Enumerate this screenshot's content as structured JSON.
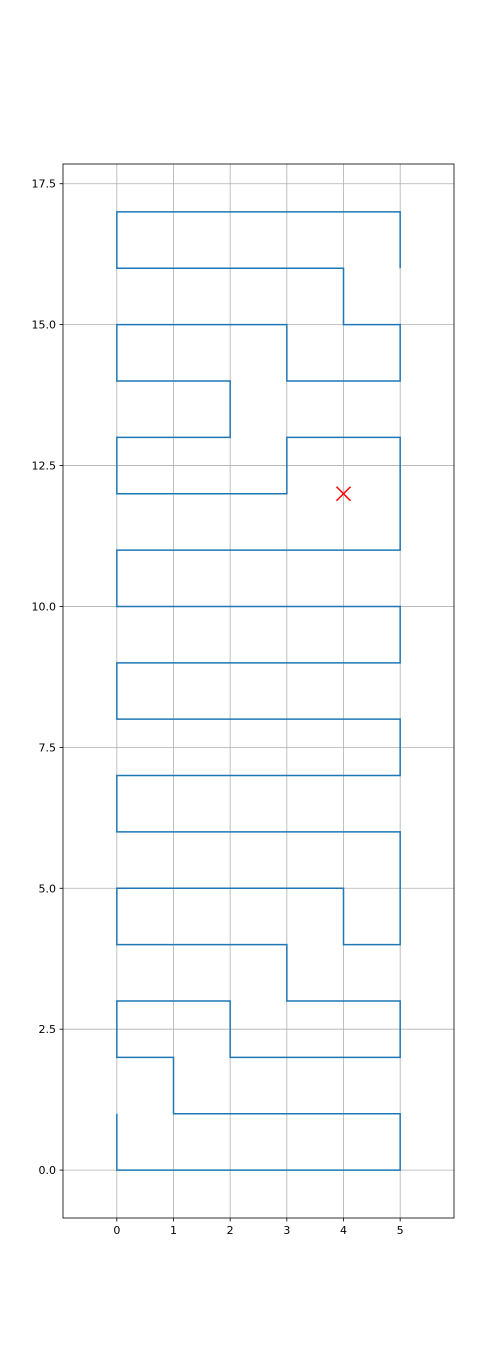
{
  "chart_data": {
    "type": "line",
    "title": "",
    "xlabel": "",
    "ylabel": "",
    "xlim": [
      -0.95,
      5.95
    ],
    "ylim": [
      -0.85,
      17.85
    ],
    "grid": true,
    "xticks": [
      0,
      1,
      2,
      3,
      4,
      5
    ],
    "xtick_labels": [
      "0",
      "1",
      "2",
      "3",
      "4",
      "5"
    ],
    "yticks": [
      0,
      2.5,
      5,
      7.5,
      10,
      12.5,
      15,
      17.5
    ],
    "ytick_labels": [
      "0.0",
      "2.5",
      "5.0",
      "7.5",
      "10.0",
      "12.5",
      "15.0",
      "17.5"
    ],
    "series": [
      {
        "color": "#1f77b4",
        "points": [
          [
            0,
            1
          ],
          [
            0,
            0
          ],
          [
            5,
            0
          ],
          [
            5,
            1
          ],
          [
            1,
            1
          ],
          [
            1,
            2
          ],
          [
            0,
            2
          ],
          [
            0,
            3
          ],
          [
            2,
            3
          ],
          [
            2,
            2
          ],
          [
            5,
            2
          ],
          [
            5,
            3
          ],
          [
            3,
            3
          ],
          [
            3,
            4
          ],
          [
            0,
            4
          ],
          [
            0,
            5
          ],
          [
            4,
            5
          ],
          [
            4,
            4
          ],
          [
            5,
            4
          ],
          [
            5,
            6
          ],
          [
            0,
            6
          ],
          [
            0,
            7
          ],
          [
            5,
            7
          ],
          [
            5,
            8
          ],
          [
            0,
            8
          ],
          [
            0,
            9
          ],
          [
            5,
            9
          ],
          [
            5,
            10
          ],
          [
            0,
            10
          ],
          [
            0,
            11
          ],
          [
            5,
            11
          ],
          [
            5,
            13
          ],
          [
            3,
            13
          ],
          [
            3,
            12
          ],
          [
            0,
            12
          ],
          [
            0,
            13
          ],
          [
            2,
            13
          ],
          [
            2,
            14
          ],
          [
            0,
            14
          ],
          [
            0,
            15
          ],
          [
            3,
            15
          ],
          [
            3,
            14
          ],
          [
            5,
            14
          ],
          [
            5,
            15
          ],
          [
            4,
            15
          ],
          [
            4,
            16
          ],
          [
            0,
            16
          ],
          [
            0,
            17
          ],
          [
            5,
            17
          ],
          [
            5,
            16
          ]
        ]
      }
    ],
    "markers": [
      {
        "x": 4,
        "y": 12,
        "symbol": "x",
        "color": "#ff0000"
      }
    ]
  }
}
